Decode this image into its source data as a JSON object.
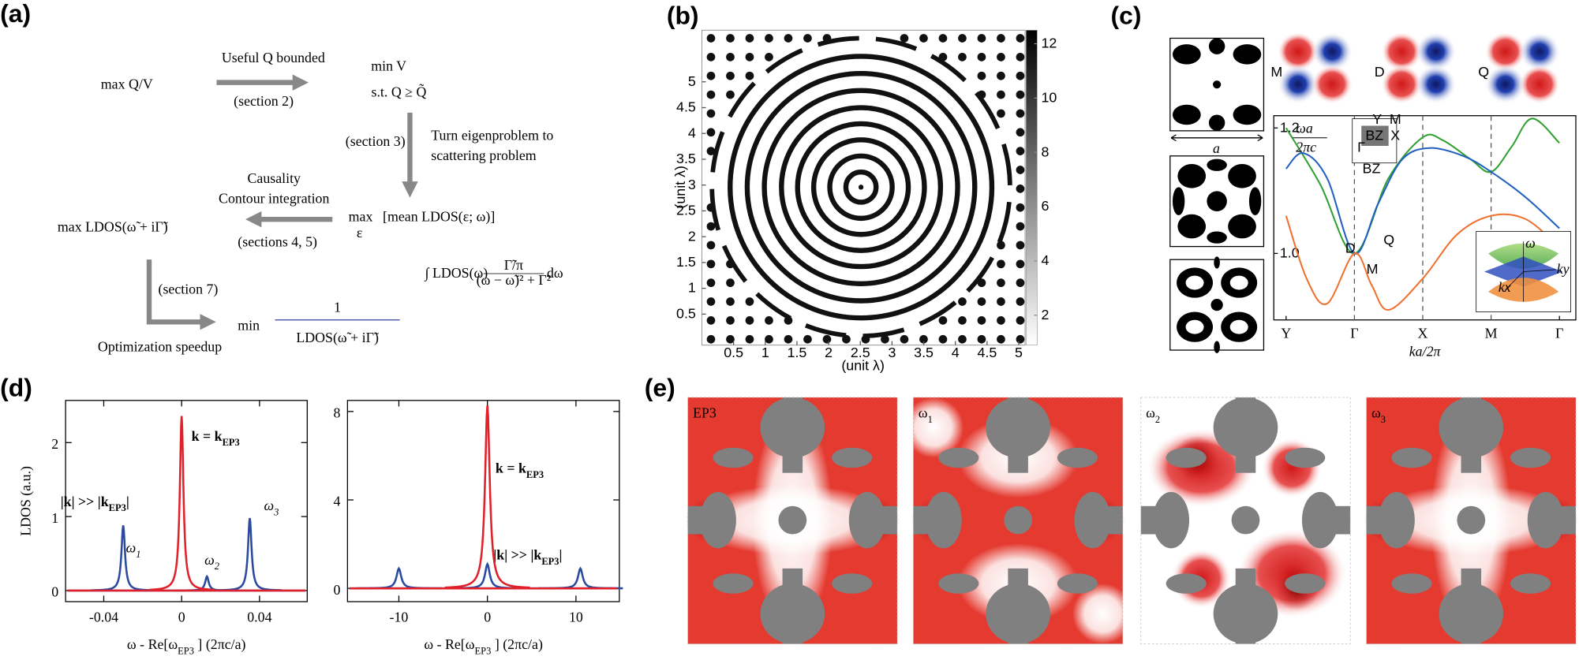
{
  "panel_a": {
    "label": "(a)",
    "start": "max Q/V",
    "step1": "Useful Q bounded",
    "sec2": "(section 2)",
    "minv": "min V",
    "st": "s.t. Q ≥ Q̃",
    "sec3": "(section 3)",
    "turn1": "Turn eigenproblem to",
    "turn2": "scattering problem",
    "maxeps": "max",
    "eps": "ε",
    "mean": "[mean LDOS(ε; ω)]",
    "causality": "Causality",
    "contour": "Contour integration",
    "sec45": "(sections 4, 5)",
    "maxldos": "max LDOS(ω̃ + iΓ̃)",
    "int_pre": "∫ LDOS(ω)",
    "int_num": "Γ̃/π",
    "int_den": "(ω − ω̃)² + Γ̃²",
    "int_post": "dω",
    "sec7": "(section 7)",
    "min": "min",
    "one": "1",
    "den": "LDOS(ω̃ + iΓ̃)",
    "speedup": "Optimization speedup"
  },
  "panel_b": {
    "label": "(b)",
    "xlabel": "(unit λ)",
    "ylabel": "(unit λ)",
    "xlim": [
      0,
      5.1
    ],
    "ylim": [
      -0.1,
      6
    ],
    "xticks": [
      0.5,
      1,
      1.5,
      2,
      2.5,
      3,
      3.5,
      4,
      4.5,
      5
    ],
    "yticks": [
      0.5,
      1,
      1.5,
      2,
      2.5,
      3,
      3.5,
      4,
      4.5,
      5
    ],
    "clim": [
      0.9,
      12.5
    ],
    "cticks": [
      2,
      4,
      6,
      8,
      10,
      12
    ]
  },
  "panel_c": {
    "label": "(c)",
    "unit_cell": "a",
    "modes": [
      {
        "name": "M",
        "color": "#f07030"
      },
      {
        "name": "D",
        "color": "#2060c0"
      },
      {
        "name": "Q",
        "color": "#30a030"
      }
    ],
    "ylabel_num": "ωa",
    "ylabel_den": "2πc",
    "xlabel": "ka/2π",
    "xlim": [
      -0.18,
      4.24
    ],
    "ylim": [
      0.894,
      1.2195
    ],
    "xticks": [
      {
        "value": 0,
        "label": "Y"
      },
      {
        "value": 1,
        "label": "Γ"
      },
      {
        "value": 2,
        "label": "X"
      },
      {
        "value": 3,
        "label": "M"
      },
      {
        "value": 4,
        "label": "Γ"
      }
    ],
    "yticks": [
      1.2,
      {
        "value": 1.0,
        "label": "1.0"
      }
    ],
    "series": [
      {
        "name": "Q",
        "color": "#30a030",
        "x": [
          0,
          0.5,
          1,
          1.5,
          2,
          2.3,
          2.7,
          3,
          3.3,
          3.6,
          4
        ],
        "values": [
          1.2,
          1.11,
          1.0,
          1.12,
          1.185,
          1.18,
          1.15,
          1.13,
          1.17,
          1.215,
          1.176
        ]
      },
      {
        "name": "D",
        "color": "#2060c0",
        "x": [
          0,
          0.25,
          0.6,
          1,
          1.35,
          1.7,
          2.1,
          2.6,
          3,
          3.5,
          4
        ],
        "values": [
          1.135,
          1.16,
          1.12,
          1.0,
          1.08,
          1.15,
          1.168,
          1.155,
          1.13,
          1.09,
          1.04
        ]
      },
      {
        "name": "M",
        "color": "#f07030",
        "x": [
          0,
          0.3,
          0.6,
          1,
          1.25,
          1.5,
          2,
          2.5,
          3,
          3.5,
          4
        ],
        "values": [
          1.06,
          0.96,
          0.92,
          1.0,
          0.95,
          0.91,
          0.96,
          1.03,
          1.06,
          1.055,
          1.01
        ]
      }
    ],
    "bz": {
      "title": "BZ",
      "y": "Y",
      "m": "M",
      "x": "X",
      "gamma": "Γ",
      "caption": "BZ"
    },
    "cone": {
      "w": "ω",
      "ky": "ky",
      "kx": "kx"
    }
  },
  "chart_data": [
    {
      "type": "spectrum",
      "ylabel": "LDOS (a.u.)",
      "xlabel_pre": "ω - Re[ω",
      "xlabel_sub": "EP3",
      "xlabel_post": " ] (2πc/a)",
      "xlim": [
        -0.0596,
        0.0645
      ],
      "ylim": [
        -0.15,
        2.57
      ],
      "xticks": [
        -0.04,
        0,
        0.04
      ],
      "yticks": [
        0,
        1,
        2
      ],
      "series": [
        {
          "name": "k = k",
          "name_sub": "EP3",
          "color": "#e0202a",
          "x": [
            0
          ],
          "values": [
            2.36
          ]
        },
        {
          "name": "|k| >> |k",
          "name_sub": "EP3",
          "name_end": "|",
          "color": "#2a4aa0",
          "x": [
            -0.03,
            0.013,
            0.035
          ],
          "values": [
            0.88,
            0.19,
            0.98
          ]
        }
      ],
      "annotations": [
        {
          "text": "ω",
          "sub": "1"
        },
        {
          "text": "ω",
          "sub": "2"
        },
        {
          "text": "ω",
          "sub": "3"
        }
      ]
    },
    {
      "type": "spectrum",
      "xlabel_pre": "ω - Re[ω",
      "xlabel_sub": "EP3",
      "xlabel_post": " ] (2πc/a)",
      "xlim": [
        -15.8,
        14.9
      ],
      "ylim": [
        -0.6,
        8.5
      ],
      "xticks": [
        -10,
        0,
        10
      ],
      "yticks": [
        0,
        4,
        8
      ],
      "series": [
        {
          "name": "k = k",
          "name_sub": "EP3",
          "color": "#e0202a",
          "x": [
            0
          ],
          "values": [
            8.27
          ]
        },
        {
          "name": "|k| >> |k",
          "name_sub": "EP3",
          "name_end": "|",
          "color": "#2a4aa0",
          "x": [
            -10,
            0,
            10.5
          ],
          "values": [
            0.9,
            1.1,
            0.9
          ]
        }
      ]
    }
  ],
  "panel_d": {
    "label": "(d)"
  },
  "panel_e": {
    "label": "(e)",
    "maps": [
      {
        "text": "EP3"
      },
      {
        "text": "ω",
        "sub": "1"
      },
      {
        "text": "ω",
        "sub": "2"
      },
      {
        "text": "ω",
        "sub": "3"
      }
    ]
  }
}
